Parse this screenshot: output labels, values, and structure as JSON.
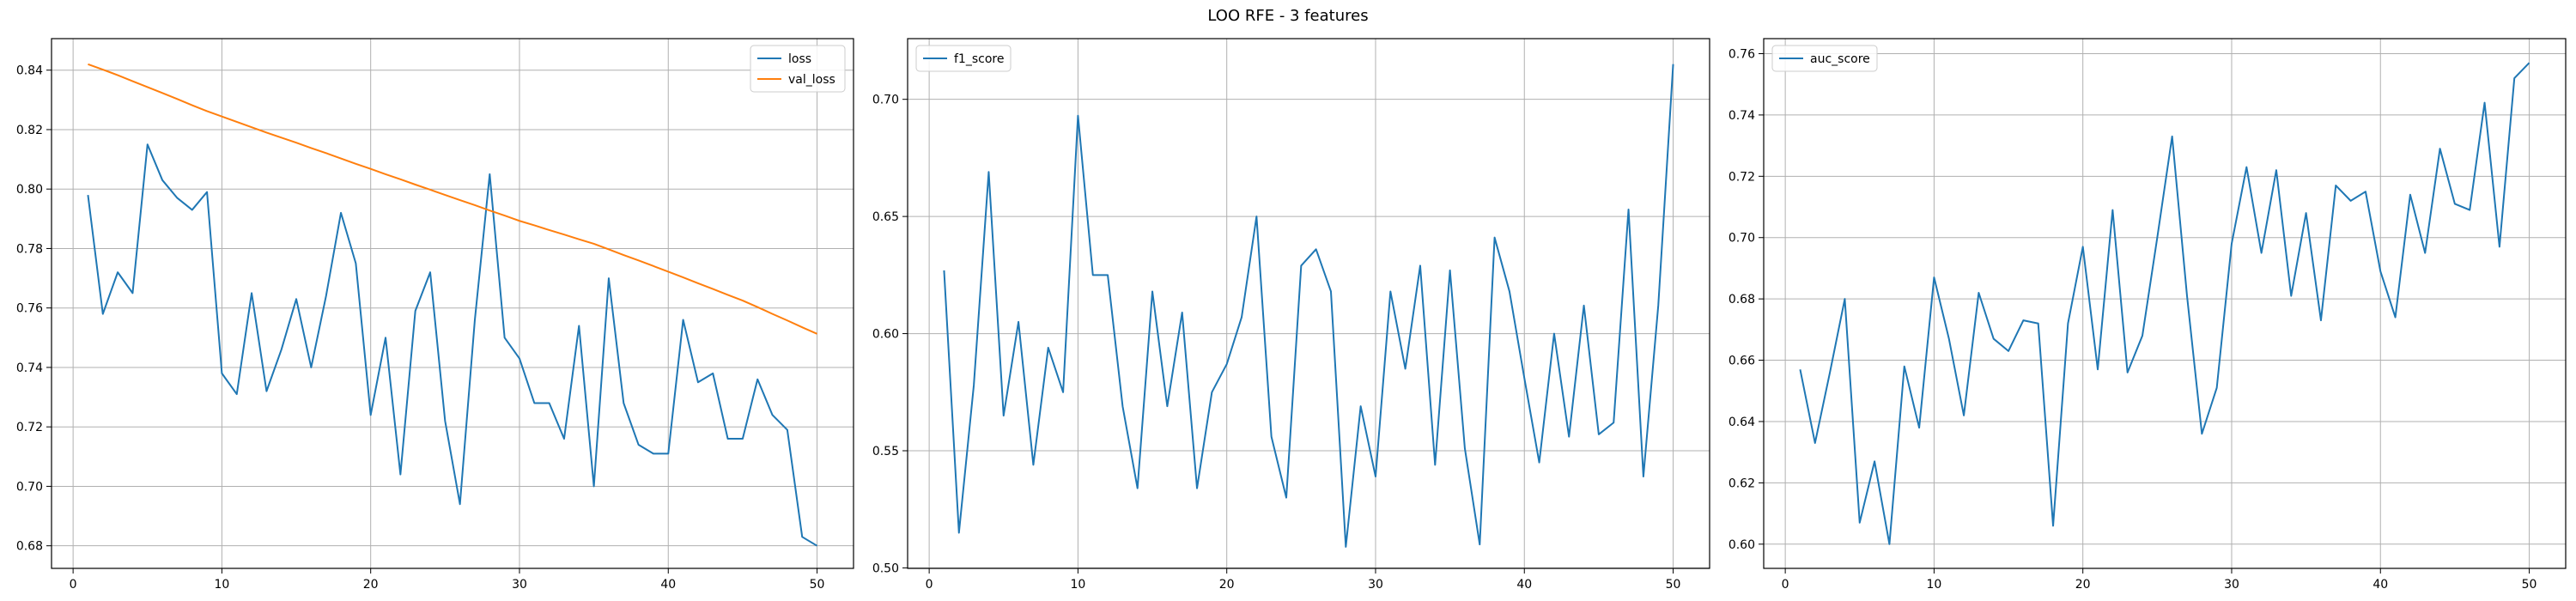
{
  "suptitle": "LOO RFE - 3 features",
  "colors": {
    "loss": "#1f77b4",
    "val_loss": "#ff7f0e",
    "grid": "#b0b0b0",
    "axis": "#000000"
  },
  "chart_data": [
    {
      "type": "line",
      "title": "",
      "xlabel": "",
      "ylabel": "",
      "xlim": [
        -1.45,
        52.45
      ],
      "ylim": [
        0.6724,
        0.8506
      ],
      "xticks": [
        0,
        10,
        20,
        30,
        40,
        50
      ],
      "yticks": [
        0.68,
        0.7,
        0.72,
        0.74,
        0.76,
        0.78,
        0.8,
        0.82,
        0.84
      ],
      "ytick_labels": [
        "0.68",
        "0.70",
        "0.72",
        "0.74",
        "0.76",
        "0.78",
        "0.80",
        "0.82",
        "0.84"
      ],
      "grid": true,
      "legend_position": "upper right",
      "x": [
        1,
        2,
        3,
        4,
        5,
        6,
        7,
        8,
        9,
        10,
        11,
        12,
        13,
        14,
        15,
        16,
        17,
        18,
        19,
        20,
        21,
        22,
        23,
        24,
        25,
        26,
        27,
        28,
        29,
        30,
        31,
        32,
        33,
        34,
        35,
        36,
        37,
        38,
        39,
        40,
        41,
        42,
        43,
        44,
        45,
        46,
        47,
        48,
        49,
        50
      ],
      "series": [
        {
          "name": "loss",
          "color": "#1f77b4",
          "values": [
            0.798,
            0.758,
            0.772,
            0.765,
            0.815,
            0.803,
            0.797,
            0.793,
            0.799,
            0.738,
            0.731,
            0.765,
            0.732,
            0.746,
            0.763,
            0.74,
            0.764,
            0.792,
            0.775,
            0.724,
            0.75,
            0.704,
            0.759,
            0.772,
            0.722,
            0.694,
            0.756,
            0.805,
            0.75,
            0.743,
            0.728,
            0.728,
            0.716,
            0.754,
            0.7,
            0.77,
            0.728,
            0.714,
            0.711,
            0.711,
            0.756,
            0.735,
            0.738,
            0.716,
            0.716,
            0.736,
            0.724,
            0.719,
            0.683,
            0.68
          ]
        },
        {
          "name": "val_loss",
          "color": "#ff7f0e",
          "values": [
            0.842,
            0.8402,
            0.8383,
            0.8363,
            0.8343,
            0.8323,
            0.8303,
            0.8282,
            0.8262,
            0.8244,
            0.8226,
            0.8208,
            0.819,
            0.8173,
            0.8156,
            0.8138,
            0.8121,
            0.8103,
            0.8085,
            0.8068,
            0.805,
            0.8033,
            0.8015,
            0.7998,
            0.798,
            0.7963,
            0.7946,
            0.7928,
            0.7911,
            0.7893,
            0.7878,
            0.7862,
            0.7847,
            0.7831,
            0.7816,
            0.7797,
            0.7778,
            0.776,
            0.7741,
            0.7722,
            0.7703,
            0.7683,
            0.7664,
            0.7644,
            0.7625,
            0.7603,
            0.758,
            0.7558,
            0.7535,
            0.7513
          ]
        }
      ]
    },
    {
      "type": "line",
      "title": "",
      "xlabel": "",
      "ylabel": "",
      "xlim": [
        -1.45,
        52.45
      ],
      "ylim": [
        0.4998,
        0.7259
      ],
      "xticks": [
        0,
        10,
        20,
        30,
        40,
        50
      ],
      "yticks": [
        0.5,
        0.55,
        0.6,
        0.65,
        0.7
      ],
      "ytick_labels": [
        "0.50",
        "0.55",
        "0.60",
        "0.65",
        "0.70"
      ],
      "grid": true,
      "legend_position": "upper left",
      "x": [
        1,
        2,
        3,
        4,
        5,
        6,
        7,
        8,
        9,
        10,
        11,
        12,
        13,
        14,
        15,
        16,
        17,
        18,
        19,
        20,
        21,
        22,
        23,
        24,
        25,
        26,
        27,
        28,
        29,
        30,
        31,
        32,
        33,
        34,
        35,
        36,
        37,
        38,
        39,
        40,
        41,
        42,
        43,
        44,
        45,
        46,
        47,
        48,
        49,
        50
      ],
      "series": [
        {
          "name": "f1_score",
          "color": "#1f77b4",
          "values": [
            0.627,
            0.515,
            0.578,
            0.669,
            0.565,
            0.605,
            0.544,
            0.594,
            0.575,
            0.693,
            0.625,
            0.625,
            0.569,
            0.534,
            0.618,
            0.569,
            0.609,
            0.534,
            0.575,
            0.587,
            0.607,
            0.65,
            0.556,
            0.53,
            0.629,
            0.636,
            0.618,
            0.509,
            0.569,
            0.539,
            0.618,
            0.585,
            0.629,
            0.544,
            0.627,
            0.551,
            0.51,
            0.641,
            0.618,
            0.581,
            0.545,
            0.6,
            0.556,
            0.612,
            0.557,
            0.562,
            0.653,
            0.539,
            0.612,
            0.715
          ]
        }
      ]
    },
    {
      "type": "line",
      "title": "",
      "xlabel": "",
      "ylabel": "",
      "xlim": [
        -1.45,
        52.45
      ],
      "ylim": [
        0.5921,
        0.7649
      ],
      "xticks": [
        0,
        10,
        20,
        30,
        40,
        50
      ],
      "yticks": [
        0.6,
        0.62,
        0.64,
        0.66,
        0.68,
        0.7,
        0.72,
        0.74,
        0.76
      ],
      "ytick_labels": [
        "0.60",
        "0.62",
        "0.64",
        "0.66",
        "0.68",
        "0.70",
        "0.72",
        "0.74",
        "0.76"
      ],
      "grid": true,
      "legend_position": "upper left",
      "x": [
        1,
        2,
        3,
        4,
        5,
        6,
        7,
        8,
        9,
        10,
        11,
        12,
        13,
        14,
        15,
        16,
        17,
        18,
        19,
        20,
        21,
        22,
        23,
        24,
        25,
        26,
        27,
        28,
        29,
        30,
        31,
        32,
        33,
        34,
        35,
        36,
        37,
        38,
        39,
        40,
        41,
        42,
        43,
        44,
        45,
        46,
        47,
        48,
        49,
        50
      ],
      "series": [
        {
          "name": "auc_score",
          "color": "#1f77b4",
          "values": [
            0.657,
            0.633,
            0.656,
            0.68,
            0.607,
            0.627,
            0.6,
            0.658,
            0.638,
            0.687,
            0.667,
            0.642,
            0.682,
            0.667,
            0.663,
            0.673,
            0.672,
            0.606,
            0.672,
            0.697,
            0.657,
            0.709,
            0.656,
            0.668,
            0.7,
            0.733,
            0.681,
            0.636,
            0.651,
            0.698,
            0.723,
            0.695,
            0.722,
            0.681,
            0.708,
            0.673,
            0.717,
            0.712,
            0.715,
            0.689,
            0.674,
            0.714,
            0.695,
            0.729,
            0.711,
            0.709,
            0.744,
            0.697,
            0.752,
            0.757
          ]
        }
      ]
    }
  ]
}
